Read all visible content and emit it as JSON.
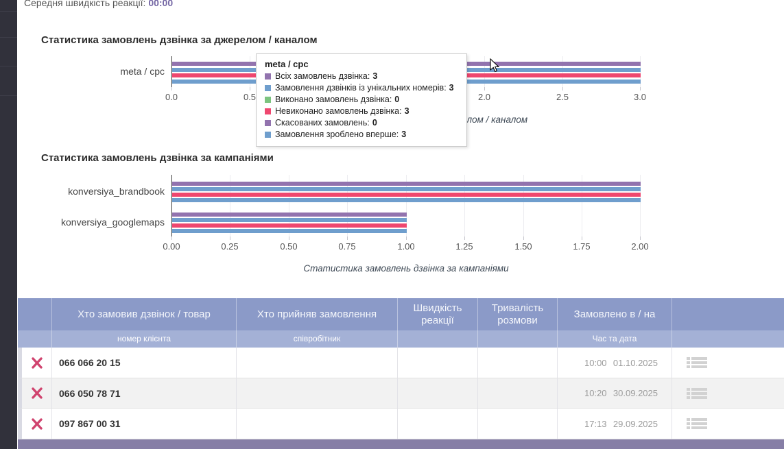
{
  "page": {
    "avg_reaction_label": "Середня швидкість реакції:",
    "avg_reaction_value": "00:00"
  },
  "colors": {
    "accent_purple": "#7568a5",
    "table_header": "#8b9ac8",
    "table_subheader": "#a4b1d6",
    "footer_bar": "#867ea6",
    "delete_x": "#d0436e",
    "bar_purple": "#9273ae",
    "bar_blue": "#6f9ecd",
    "bar_green": "#7cc47f",
    "bar_red": "#ef476f"
  },
  "chart_data": [
    {
      "type": "bar",
      "orientation": "horizontal",
      "title": "Статистика замовлень дзвінка за джерелом / каналом",
      "caption": "Статистика замовлень дзвінка за джерелом / каналом",
      "categories": [
        "meta / cpc"
      ],
      "series": [
        {
          "name": "Всіх замовлень дзвінка",
          "color": "#9273ae",
          "values": [
            3
          ]
        },
        {
          "name": "Замовлення дзвінків із унікальних номерів",
          "color": "#6f9ecd",
          "values": [
            3
          ]
        },
        {
          "name": "Виконано замовлень дзвінка",
          "color": "#7cc47f",
          "values": [
            0
          ]
        },
        {
          "name": "Невиконано замовлень дзвінка",
          "color": "#ef476f",
          "values": [
            3
          ]
        },
        {
          "name": "Скасованих замовлень",
          "color": "#9273ae",
          "values": [
            0
          ]
        },
        {
          "name": "Замовлення зроблено вперше",
          "color": "#6f9ecd",
          "values": [
            3
          ]
        }
      ],
      "xlim": [
        0,
        3
      ],
      "ticks": [
        "0.0",
        "0.5",
        "1.0",
        "1.5",
        "2.0",
        "2.5",
        "3.0"
      ],
      "grid": true,
      "legend_position": "tooltip-only"
    },
    {
      "type": "bar",
      "orientation": "horizontal",
      "title": "Статистика замовлень дзвінка за кампаніями",
      "caption": "Статистика замовлень дзвінка за кампаніями",
      "categories": [
        "konversiya_brandbook",
        "konversiya_googlemaps"
      ],
      "series": [
        {
          "name": "Всіх замовлень дзвінка",
          "color": "#9273ae",
          "values": [
            2,
            1
          ]
        },
        {
          "name": "Замовлення дзвінків із унікальних номерів",
          "color": "#6f9ecd",
          "values": [
            2,
            1
          ]
        },
        {
          "name": "Виконано замовлень дзвінка",
          "color": "#7cc47f",
          "values": [
            0,
            0
          ]
        },
        {
          "name": "Невиконано замовлень дзвінка",
          "color": "#ef476f",
          "values": [
            2,
            1
          ]
        },
        {
          "name": "Скасованих замовлень",
          "color": "#9273ae",
          "values": [
            0,
            0
          ]
        },
        {
          "name": "Замовлення зроблено вперше",
          "color": "#6f9ecd",
          "values": [
            2,
            1
          ]
        }
      ],
      "xlim": [
        0,
        2
      ],
      "ticks": [
        "0.00",
        "0.25",
        "0.50",
        "0.75",
        "1.00",
        "1.25",
        "1.50",
        "1.75",
        "2.00"
      ],
      "grid": true,
      "legend_position": "none"
    }
  ],
  "tooltip": {
    "title": "meta / cpc",
    "items": [
      {
        "label": "Всіх замовлень дзвінка:",
        "value": "3",
        "color": "#9273ae"
      },
      {
        "label": "Замовлення дзвінків із унікальних номерів:",
        "value": "3",
        "color": "#6f9ecd"
      },
      {
        "label": "Виконано замовлень дзвінка:",
        "value": "0",
        "color": "#7cc47f"
      },
      {
        "label": "Невиконано замовлень дзвінка:",
        "value": "3",
        "color": "#ef476f"
      },
      {
        "label": "Скасованих замовлень:",
        "value": "0",
        "color": "#9273ae"
      },
      {
        "label": "Замовлення зроблено вперше:",
        "value": "3",
        "color": "#6f9ecd"
      }
    ]
  },
  "table": {
    "headers": {
      "who_ordered": "Хто замовив дзвінок / товар",
      "who_accepted": "Хто прийняв замовлення",
      "reaction_speed": "Швидкість реакції",
      "talk_duration": "Тривалість розмови",
      "ordered_at": "Замовлено в / на"
    },
    "subheaders": {
      "client_number": "номер клієнта",
      "employee": "співробітник",
      "time_and_date": "Час та дата"
    },
    "rows": [
      {
        "phone": "066 066 20 15",
        "time": "10:00",
        "date": "01.10.2025"
      },
      {
        "phone": "066 050 78 71",
        "time": "10:20",
        "date": "30.09.2025"
      },
      {
        "phone": "097 867 00 31",
        "time": "17:13",
        "date": "29.09.2025"
      }
    ]
  },
  "icons": {
    "delete": "x-cross-icon",
    "row_menu": "list-icon",
    "pointer": "mouse-cursor"
  }
}
